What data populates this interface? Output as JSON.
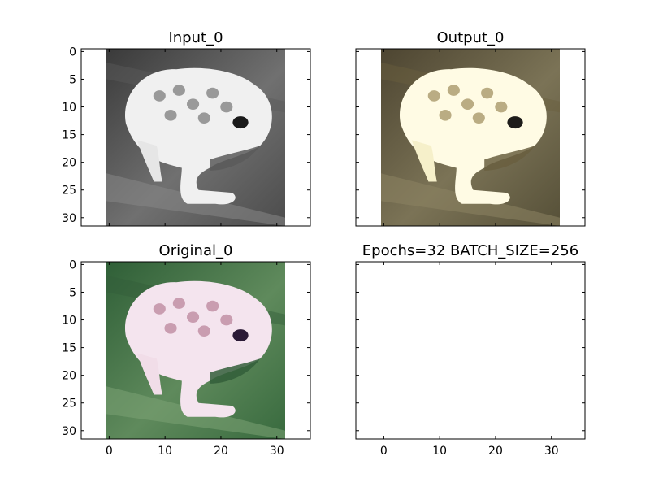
{
  "colors": {
    "figure_background": "#ffffff",
    "axes_edge": "#000000"
  },
  "chart_data": [
    {
      "type": "image",
      "title": "Input_0",
      "xlim": [
        -5,
        36
      ],
      "ylim": [
        31.5,
        -0.5
      ],
      "x_ticks": [],
      "y_ticks": [
        0,
        5,
        10,
        15,
        20,
        25,
        30
      ],
      "image_size": [
        32,
        32
      ],
      "colormap": "gray",
      "subject": "grayscale frog"
    },
    {
      "type": "image",
      "title": "Output_0",
      "xlim": [
        -5,
        36
      ],
      "ylim": [
        31.5,
        -0.5
      ],
      "x_ticks": [],
      "y_ticks": [],
      "image_size": [
        32,
        32
      ],
      "colormap": "rgb",
      "subject": "colorized frog"
    },
    {
      "type": "image",
      "title": "Original_0",
      "xlim": [
        -5,
        36
      ],
      "ylim": [
        31.5,
        -0.5
      ],
      "x_ticks": [
        0,
        10,
        20,
        30
      ],
      "y_ticks": [
        0,
        5,
        10,
        15,
        20,
        25,
        30
      ],
      "image_size": [
        32,
        32
      ],
      "colormap": "rgb",
      "subject": "original color frog"
    },
    {
      "type": "image",
      "title": "Epochs=32 BATCH_SIZE=256",
      "xlim": [
        -5,
        36
      ],
      "ylim": [
        31.5,
        -0.5
      ],
      "x_ticks": [
        0,
        10,
        20,
        30
      ],
      "y_ticks": [],
      "image_size": null,
      "colormap": null,
      "subject": "empty"
    }
  ]
}
